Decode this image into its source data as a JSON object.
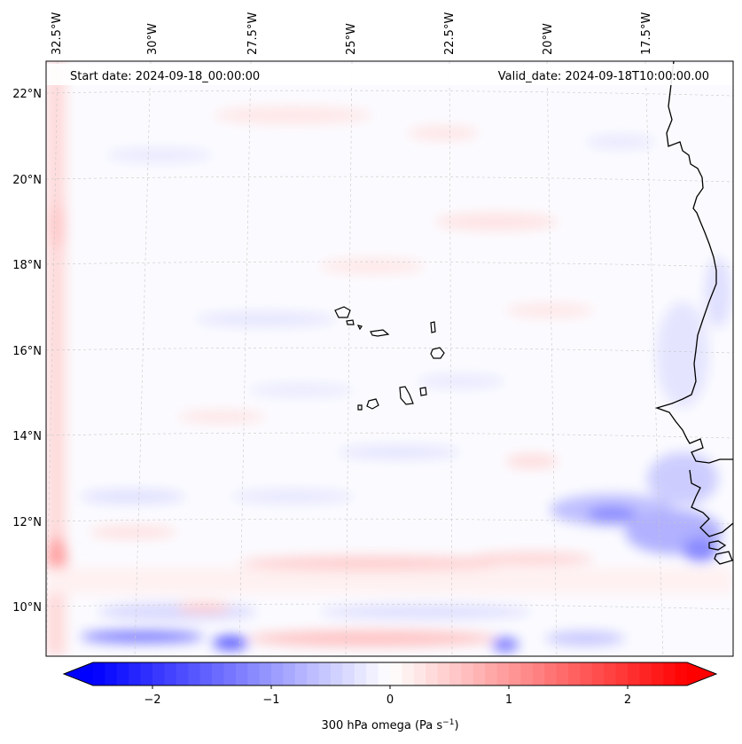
{
  "header": {
    "start_date": "Start date: 2024-09-18_00:00:00",
    "valid_date": "Valid_date: 2024-09-18T10:00:00.00"
  },
  "map": {
    "lon_labels": [
      "32.5°W",
      "30°W",
      "27.5°W",
      "25°W",
      "22.5°W",
      "20°W",
      "17.5°W"
    ],
    "lat_labels": [
      "22°N",
      "20°N",
      "18°N",
      "16°N",
      "14°N",
      "12°N",
      "10°N"
    ],
    "gridlines": true,
    "coastline_color": "#000000"
  },
  "colorbar": {
    "label": "300 hPa omega (Pa s",
    "label_sup": "−1",
    "label_close": ")",
    "ticks": [
      "−2",
      "−1",
      "0",
      "1",
      "2"
    ],
    "range": [
      -2.75,
      2.75
    ],
    "colormap": "bwr",
    "min_color": "#0000ff",
    "mid_color": "#ffffff",
    "max_color": "#ff0000"
  }
}
